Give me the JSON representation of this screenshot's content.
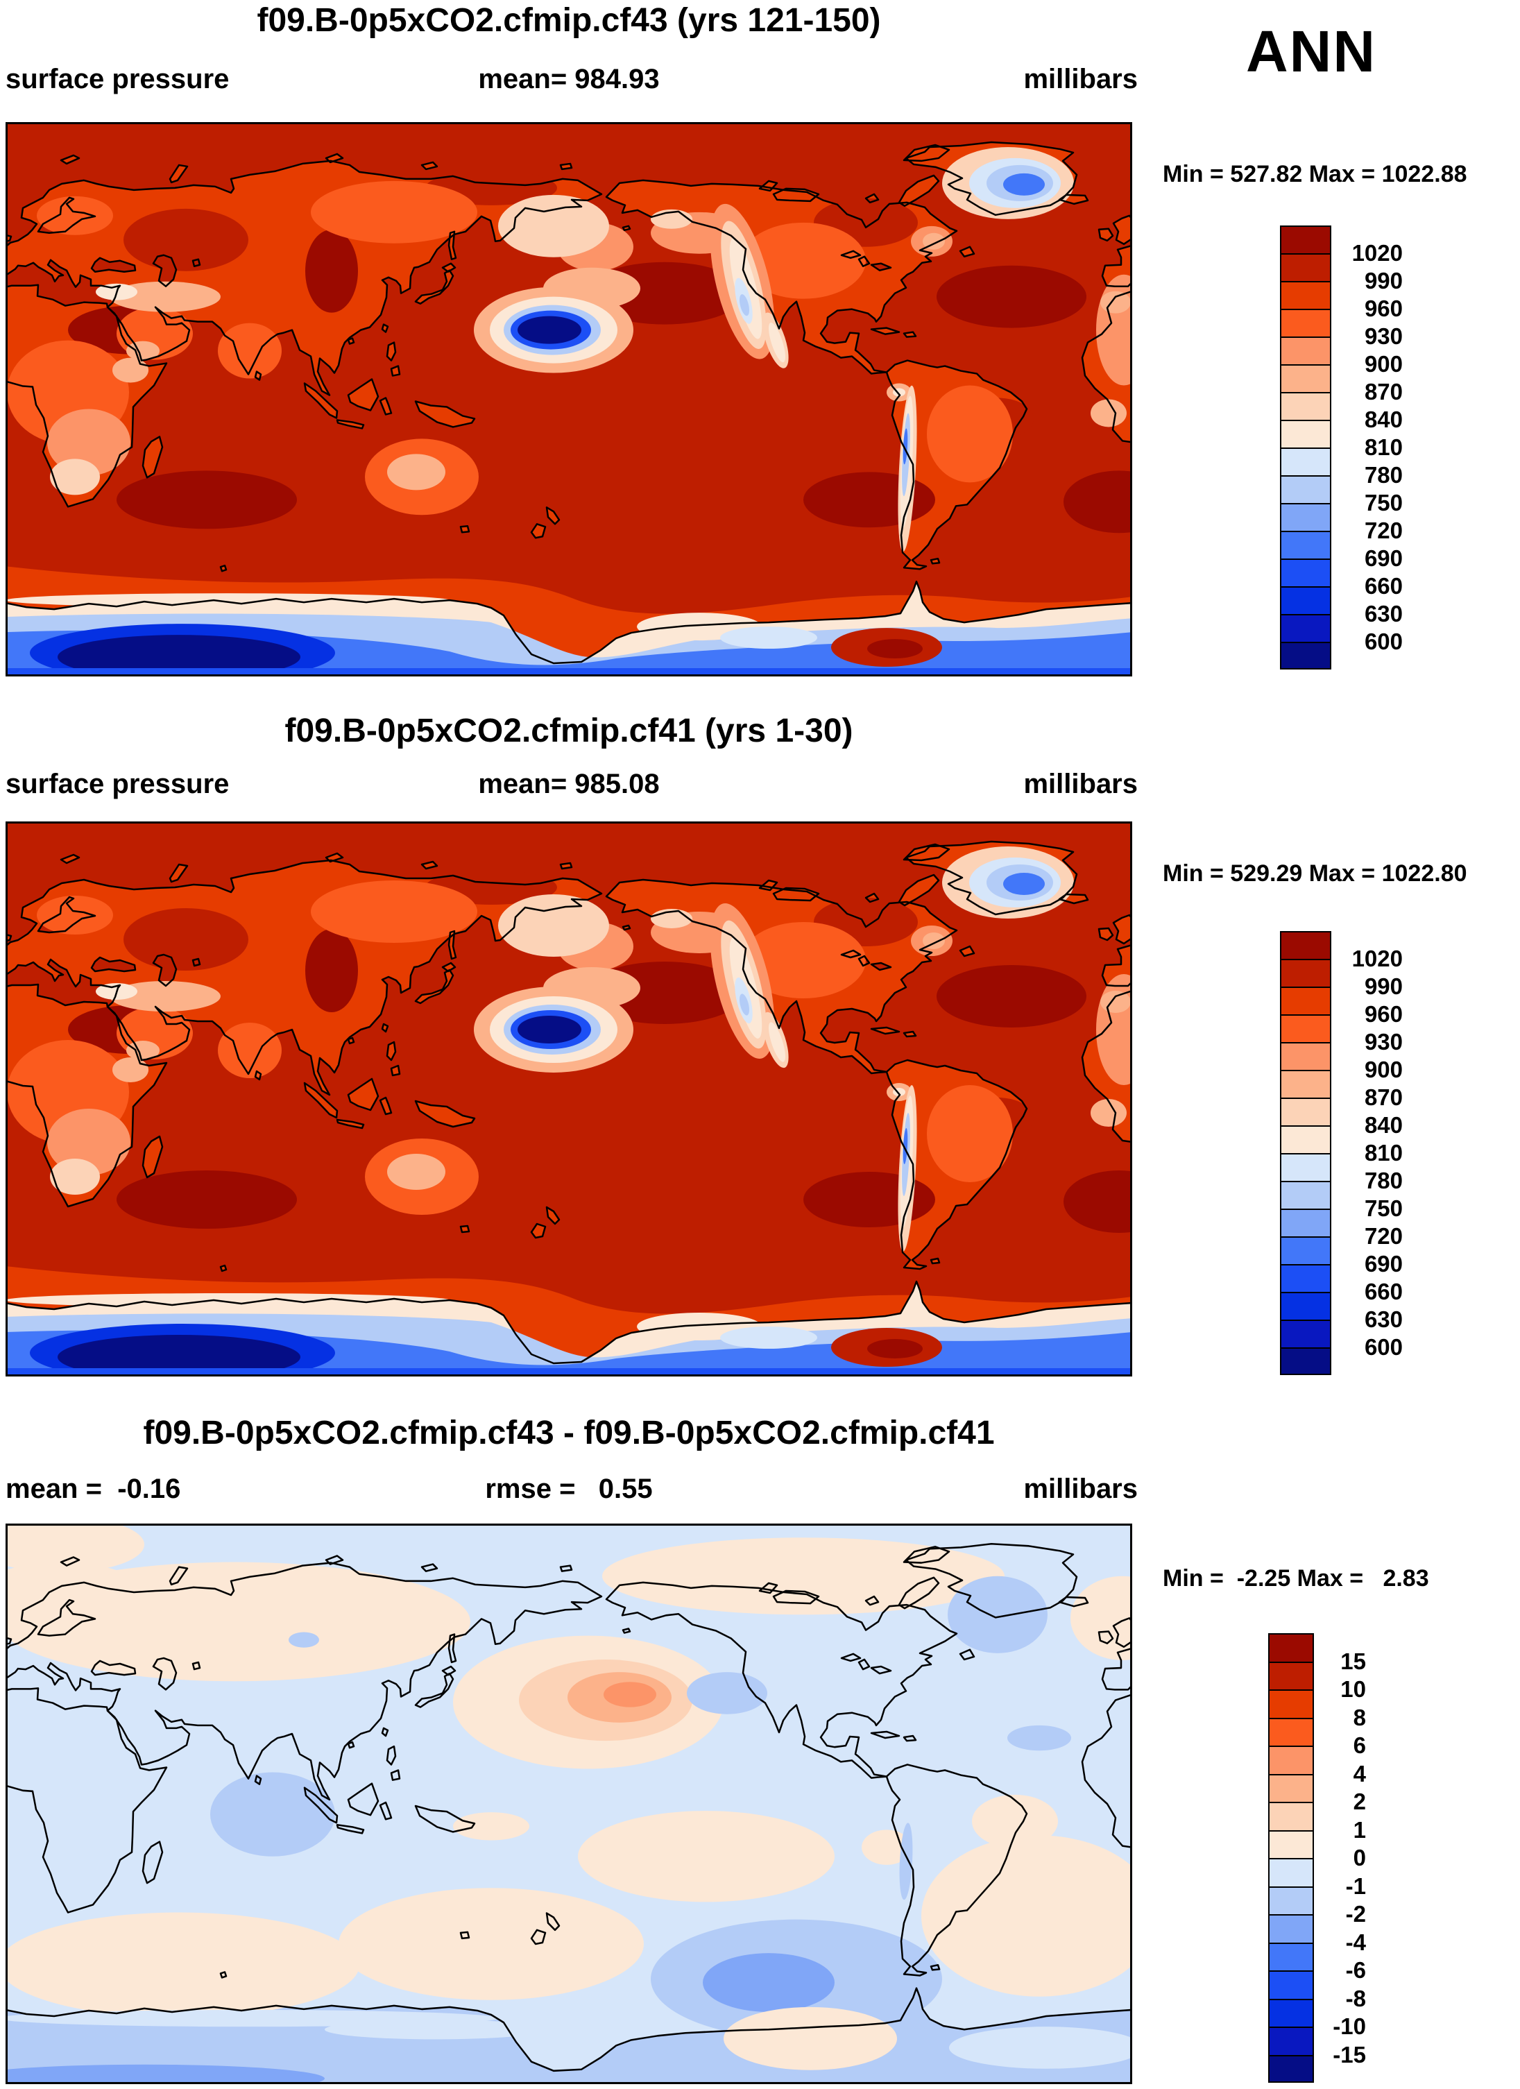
{
  "season": "ANN",
  "palette": [
    "#9B0A00",
    "#BE1E00",
    "#E63C00",
    "#FB5B1E",
    "#FC9468",
    "#FCB28A",
    "#FCD3B7",
    "#FCE8D6",
    "#D6E6FA",
    "#B3CCF7",
    "#80A6F7",
    "#4277F9",
    "#1C4FF5",
    "#0531E3",
    "#0918C0",
    "#050D86"
  ],
  "panels": [
    {
      "title": "f09.B-0p5xCO2.cfmip.cf43 (yrs 121-150)",
      "var_label": "surface pressure",
      "stat_label": "mean= 984.93",
      "units": "millibars",
      "minmax": "Min = 527.82 Max = 1022.88",
      "ticks": [
        "1020",
        "990",
        "960",
        "930",
        "900",
        "870",
        "840",
        "810",
        "780",
        "750",
        "720",
        "690",
        "660",
        "630",
        "600"
      ]
    },
    {
      "title": "f09.B-0p5xCO2.cfmip.cf41 (yrs 1-30)",
      "var_label": "surface pressure",
      "stat_label": "mean= 985.08",
      "units": "millibars",
      "minmax": "Min = 529.29 Max = 1022.80",
      "ticks": [
        "1020",
        "990",
        "960",
        "930",
        "900",
        "870",
        "840",
        "810",
        "780",
        "750",
        "720",
        "690",
        "660",
        "630",
        "600"
      ]
    },
    {
      "title": "f09.B-0p5xCO2.cfmip.cf43 - f09.B-0p5xCO2.cfmip.cf41",
      "var_label": "mean =  -0.16",
      "stat_label": "rmse =   0.55",
      "units": "millibars",
      "minmax": "Min =  -2.25 Max =   2.83",
      "ticks": [
        "15",
        "10",
        "8",
        "6",
        "4",
        "2",
        "1",
        "0",
        "-1",
        "-2",
        "-4",
        "-6",
        "-8",
        "-10",
        "-15"
      ]
    }
  ],
  "chart_data": [
    {
      "type": "heatmap",
      "subtype": "filled-contour world map, equirectangular 0-360E longitude, 90N-90S",
      "title": "f09.B-0p5xCO2.cfmip.cf43 (yrs 121-150)",
      "variable": "surface pressure",
      "units": "millibars",
      "season": "ANN",
      "mean": 984.93,
      "min": 527.82,
      "max": 1022.88,
      "contour_levels": [
        600,
        630,
        660,
        690,
        720,
        750,
        780,
        810,
        840,
        870,
        900,
        930,
        960,
        990,
        1020
      ],
      "legend_position": "right vertical discrete colorbar, 16 bins, dark red high to navy low",
      "features": "oceans ~990-1020 mb dark red; subtropical high cells >1020 mb dark maroon; land slightly lower orange; Tibetan Plateau minimum ~530 mb navy; Greenland and Rockies/Andes pale-blue lows; Antarctica blue with navy interior"
    },
    {
      "type": "heatmap",
      "subtype": "filled-contour world map, equirectangular 0-360E longitude, 90N-90S",
      "title": "f09.B-0p5xCO2.cfmip.cf41 (yrs 1-30)",
      "variable": "surface pressure",
      "units": "millibars",
      "season": "ANN",
      "mean": 985.08,
      "min": 529.29,
      "max": 1022.8,
      "contour_levels": [
        600,
        630,
        660,
        690,
        720,
        750,
        780,
        810,
        840,
        870,
        900,
        930,
        960,
        990,
        1020
      ],
      "legend_position": "right vertical discrete colorbar, 16 bins, dark red high to navy low",
      "features": "visually nearly identical to top panel: same pressure pattern for the companion run"
    },
    {
      "type": "heatmap",
      "subtype": "filled-contour difference map, equirectangular 0-360E longitude, 90N-90S",
      "title": "f09.B-0p5xCO2.cfmip.cf43 - f09.B-0p5xCO2.cfmip.cf41",
      "variable": "surface pressure difference",
      "units": "millibars",
      "season": "ANN",
      "mean": -0.16,
      "rmse": 0.55,
      "min": -2.25,
      "max": 2.83,
      "contour_levels": [
        -15,
        -10,
        -8,
        -6,
        -4,
        -2,
        -1,
        0,
        1,
        2,
        4,
        6,
        8,
        10,
        15
      ],
      "legend_position": "right vertical discrete colorbar, 16 bins",
      "features": "mostly 0 to -1 mb light blue; +0-1 mb peach over N Europe/Russia, Arctic Canada, southern mid-latitude band and S Atlantic; +1-4 mb orange maximum in NW Pacific near Kamchatka/Alaska; -1 to -2 mb blue cells over central Asia, Greenland and S Pacific ~55S"
    }
  ]
}
